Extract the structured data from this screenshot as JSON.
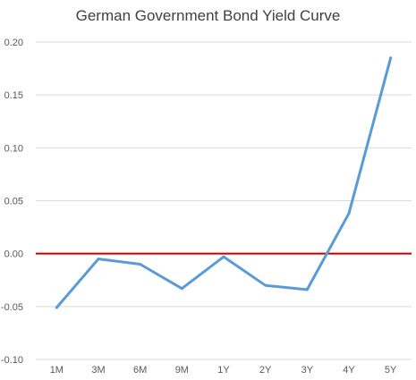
{
  "chart_data": {
    "type": "line",
    "title": "German Government Bond Yield Curve",
    "xlabel": "",
    "ylabel": "",
    "categories": [
      "1M",
      "3M",
      "6M",
      "9M",
      "1Y",
      "2Y",
      "3Y",
      "4Y",
      "5Y"
    ],
    "series": [
      {
        "values": [
          -0.051,
          -0.005,
          -0.01,
          -0.033,
          -0.003,
          -0.03,
          -0.034,
          0.038,
          0.185
        ],
        "color": "#5b9bd5"
      }
    ],
    "ylim": [
      -0.1,
      0.2
    ],
    "yticks": [
      "0.20",
      "0.15",
      "0.10",
      "0.05",
      "0.00",
      "-0.05",
      "-0.10"
    ],
    "ytick_values": [
      0.2,
      0.15,
      0.1,
      0.05,
      0.0,
      -0.05,
      -0.1
    ],
    "grid": true,
    "gridline_color": "#d9d9d9",
    "zero_line_color": "#c00000",
    "legend": "none"
  }
}
